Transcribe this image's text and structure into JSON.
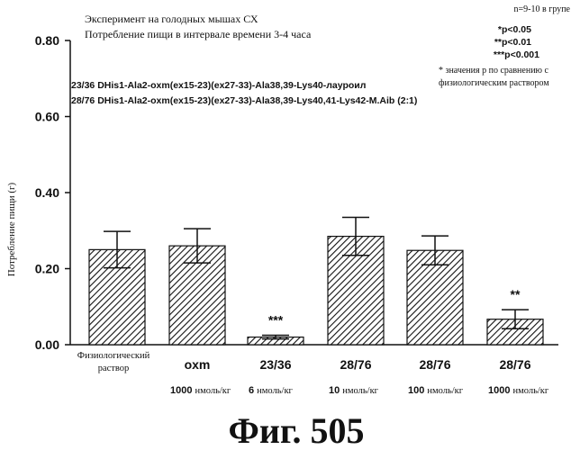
{
  "chart_data": {
    "type": "bar",
    "title": "Эксперимент на голодных мышах СХ",
    "subtitle": "Потребление пищи в интервале времени 3-4 часа",
    "ylabel": "Потребление пищи (г)",
    "xlabel": "",
    "ylim": [
      0,
      0.8
    ],
    "yticks": [
      "0.00",
      "0.20",
      "0.40",
      "0.60",
      "0.80"
    ],
    "categories": [
      {
        "name": "Физиологический раствор",
        "name_line1": "Физиологический",
        "name_line2": "раствор",
        "dose_num": "",
        "dose_unit": ""
      },
      {
        "name": "oxm",
        "name_line1": "oxm",
        "name_line2": "",
        "dose_num": "1000",
        "dose_unit": "нмоль/кг"
      },
      {
        "name": "23/36",
        "name_line1": "23/36",
        "name_line2": "",
        "dose_num": "6",
        "dose_unit": "нмоль/кг"
      },
      {
        "name": "28/76",
        "name_line1": "28/76",
        "name_line2": "",
        "dose_num": "10",
        "dose_unit": "нмоль/кг"
      },
      {
        "name": "28/76",
        "name_line1": "28/76",
        "name_line2": "",
        "dose_num": "100",
        "dose_unit": "нмоль/кг"
      },
      {
        "name": "28/76",
        "name_line1": "28/76",
        "name_line2": "",
        "dose_num": "1000",
        "dose_unit": "нмоль/кг"
      }
    ],
    "values": [
      0.25,
      0.26,
      0.02,
      0.285,
      0.248,
      0.067
    ],
    "errors": [
      0.048,
      0.045,
      0.005,
      0.05,
      0.038,
      0.025
    ],
    "significance": [
      "",
      "",
      "***",
      "",
      "",
      "**"
    ],
    "legend": {
      "n": "n=9-10 в групе",
      "p1": "*p<0.05",
      "p2": "**p<0.01",
      "p3": "***p<0.001",
      "note1": "* значения р по сравнению с",
      "note2": "физиологическим раствором"
    },
    "compounds": [
      "23/36 DHis1-Ala2-oxm(ex15-23)(ex27-33)-Ala38,39-Lys40-лауроил",
      "28/76 DHis1-Ala2-oxm(ex15-23)(ex27-33)-Ala38,39-Lys40,41-Lys42-M.Aib (2:1)"
    ],
    "grid": false,
    "bar_fill": "hatched"
  },
  "figure_label": "Фиг.  505"
}
